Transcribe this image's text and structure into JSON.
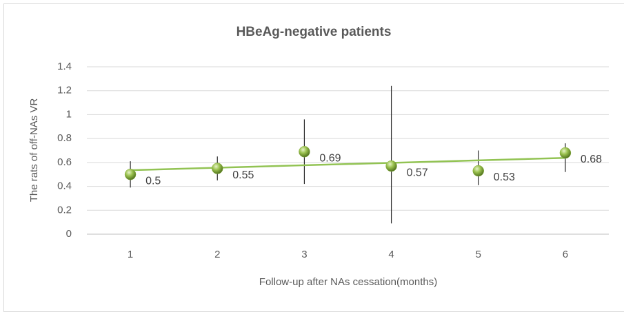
{
  "chart_data": {
    "type": "scatter",
    "title": "HBeAg-negative patients",
    "x_label": "Follow-up after NAs cessation(months)",
    "y_label": "The rats of off-NAs VR",
    "x": [
      1,
      2,
      3,
      4,
      5,
      6
    ],
    "series": [
      {
        "color": "#8db544",
        "values": [
          0.5,
          0.55,
          0.69,
          0.57,
          0.53,
          0.68
        ],
        "error_low": [
          0.11,
          0.1,
          0.27,
          0.48,
          0.12,
          0.16
        ],
        "error_high": [
          0.11,
          0.1,
          0.27,
          0.67,
          0.17,
          0.08
        ]
      }
    ],
    "trendline": "linear",
    "trendline_color": "#92c353",
    "xlim": [
      0.5,
      6.5
    ],
    "xticks": [
      1,
      2,
      3,
      4,
      5,
      6
    ],
    "ylim": [
      0,
      1.4
    ],
    "yticks": [
      0,
      0.2,
      0.4,
      0.6,
      0.8,
      1,
      1.2,
      1.4
    ],
    "grid": true
  }
}
